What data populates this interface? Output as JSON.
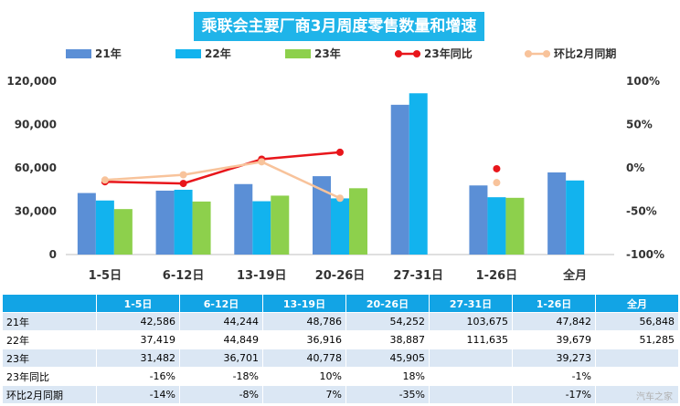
{
  "chart_data": {
    "type": "bar",
    "title": "乘联会主要厂商3月周度零售数量和增速",
    "categories": [
      "1-5日",
      "6-12日",
      "13-19日",
      "20-26日",
      "27-31日",
      "1-26日",
      "全月"
    ],
    "series": [
      {
        "name": "21年",
        "color": "#5b8fd6",
        "values": [
          42586,
          44244,
          48786,
          54252,
          103675,
          47842,
          56848
        ]
      },
      {
        "name": "22年",
        "color": "#12b3ee",
        "values": [
          37419,
          44849,
          36916,
          38887,
          111635,
          39679,
          51285
        ]
      },
      {
        "name": "23年",
        "color": "#8dd04c",
        "values": [
          31482,
          36701,
          40778,
          45905,
          null,
          39273,
          null
        ]
      }
    ],
    "line_series": [
      {
        "name": "23年同比",
        "color": "#e8161b",
        "style": "solid",
        "values": [
          -16,
          -18,
          10,
          18,
          null,
          -1,
          null
        ]
      },
      {
        "name": "环比2月同期",
        "color": "#f8c39b",
        "style": "solid",
        "values": [
          -14,
          -8,
          7,
          -35,
          null,
          -17,
          null
        ]
      }
    ],
    "y_left": {
      "min": 0,
      "max": 120000,
      "ticks": [
        "0",
        "30,000",
        "60,000",
        "90,000",
        "120,000"
      ]
    },
    "y_right": {
      "min": -100,
      "max": 100,
      "ticks": [
        "-100%",
        "-50%",
        "0%",
        "50%",
        "100%"
      ]
    },
    "legend_position": "top",
    "grid": false
  },
  "table": {
    "headers": [
      "1-5日",
      "6-12日",
      "13-19日",
      "20-26日",
      "27-31日",
      "1-26日",
      "全月"
    ],
    "rows": [
      {
        "label": "21年",
        "cells": [
          "42,586",
          "44,244",
          "48,786",
          "54,252",
          "103,675",
          "47,842",
          "56,848"
        ]
      },
      {
        "label": "22年",
        "cells": [
          "37,419",
          "44,849",
          "36,916",
          "38,887",
          "111,635",
          "39,679",
          "51,285"
        ]
      },
      {
        "label": "23年",
        "cells": [
          "31,482",
          "36,701",
          "40,778",
          "45,905",
          "",
          "39,273",
          ""
        ]
      },
      {
        "label": "23年同比",
        "cells": [
          "-16%",
          "-18%",
          "10%",
          "18%",
          "",
          "-1%",
          ""
        ]
      },
      {
        "label": "环比2月同期",
        "cells": [
          "-14%",
          "-8%",
          "7%",
          "-35%",
          "",
          "-17%",
          ""
        ]
      }
    ]
  },
  "watermark": "汽车之家"
}
